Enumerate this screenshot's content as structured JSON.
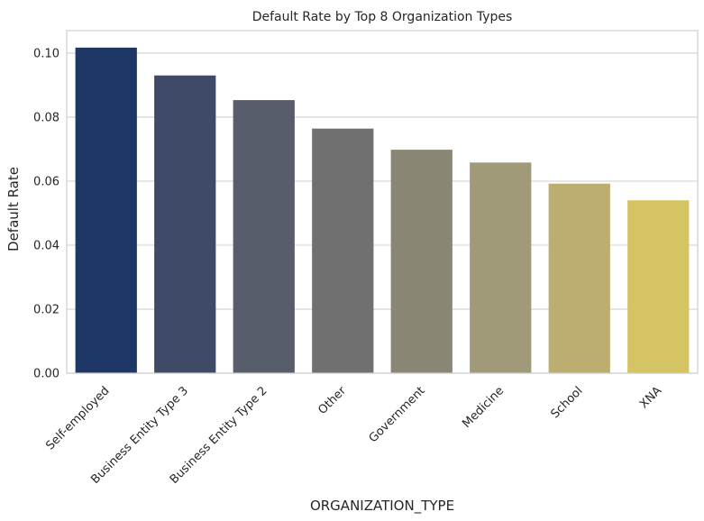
{
  "chart_data": {
    "type": "bar",
    "title": "Default Rate by Top 8 Organization Types",
    "xlabel": "ORGANIZATION_TYPE",
    "ylabel": "Default Rate",
    "categories": [
      "Self-employed",
      "Business Entity Type 3",
      "Business Entity Type 2",
      "Other",
      "Government",
      "Medicine",
      "School",
      "XNA"
    ],
    "values": [
      0.1017,
      0.093,
      0.0853,
      0.0764,
      0.0698,
      0.0658,
      0.0592,
      0.054
    ],
    "colors": [
      "#1f3766",
      "#3f4a67",
      "#575d6b",
      "#707070",
      "#8a8675",
      "#a19a79",
      "#bcad71",
      "#d5c463"
    ],
    "ylim": [
      0,
      0.107
    ],
    "yticks": [
      0.0,
      0.02,
      0.04,
      0.06,
      0.08,
      0.1
    ],
    "ytick_labels": [
      "0.00",
      "0.02",
      "0.04",
      "0.06",
      "0.08",
      "0.10"
    ],
    "grid": true,
    "legend": "none"
  }
}
